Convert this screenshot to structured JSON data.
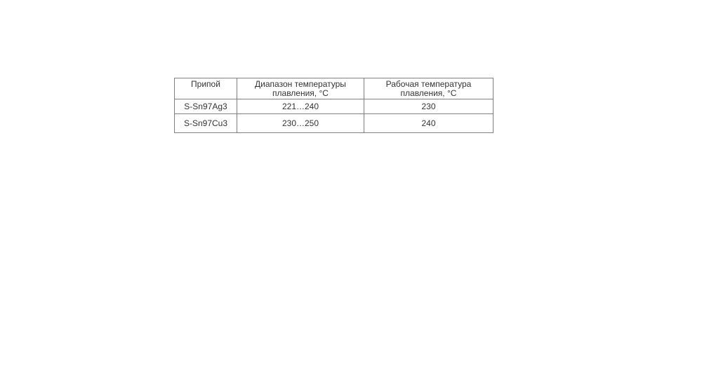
{
  "page": {
    "background_color": "#ffffff"
  },
  "table": {
    "colors": {
      "border": "#808080",
      "text": "#333333",
      "cell_background": "#ffffff"
    },
    "columns": [
      {
        "label": "Припой"
      },
      {
        "label": "Диапазон температуры плавления, °С"
      },
      {
        "label": "Рабочая температура плавления, °С"
      }
    ],
    "rows": [
      {
        "cells": [
          "S-Sn97Ag3",
          "221…240",
          "230"
        ]
      },
      {
        "cells": [
          "S-Sn97Cu3",
          "230…250",
          "240"
        ]
      }
    ]
  }
}
